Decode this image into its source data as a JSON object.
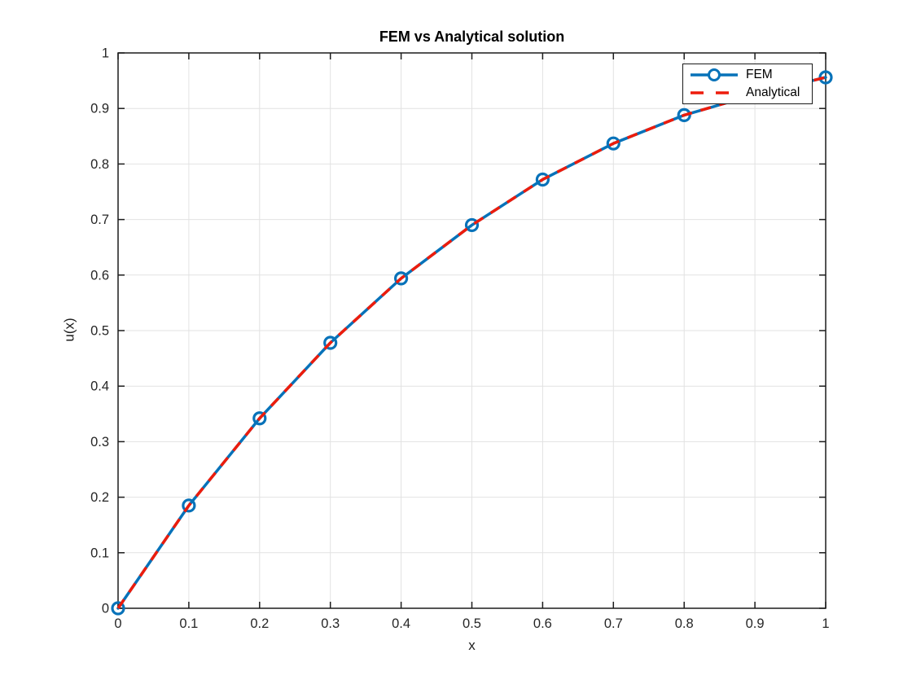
{
  "figure": {
    "title": "FEM vs Analytical solution",
    "xlabel": "x",
    "ylabel": "u(x)"
  },
  "legend": {
    "position": "top-right",
    "items": [
      {
        "label": "FEM"
      },
      {
        "label": "Analytical"
      }
    ]
  },
  "chart_data": {
    "type": "line",
    "title": "FEM vs Analytical solution",
    "xlabel": "x",
    "ylabel": "u(x)",
    "xlim": [
      0,
      1
    ],
    "ylim": [
      0,
      1
    ],
    "grid": true,
    "legend_position": "top-right",
    "x_tick_labels": [
      "0",
      "0.1",
      "0.2",
      "0.3",
      "0.4",
      "0.5",
      "0.6",
      "0.7",
      "0.8",
      "0.9",
      "1"
    ],
    "y_tick_labels": [
      "0",
      "0.1",
      "0.2",
      "0.3",
      "0.4",
      "0.5",
      "0.6",
      "0.7",
      "0.8",
      "0.9",
      "1"
    ],
    "x": [
      0,
      0.1,
      0.2,
      0.3,
      0.4,
      0.5,
      0.6,
      0.7,
      0.8,
      0.9,
      1.0
    ],
    "series": [
      {
        "name": "FEM",
        "line_style": "solid",
        "marker": "circle",
        "color": "#0772B9",
        "values": [
          0,
          0.185,
          0.342,
          0.478,
          0.594,
          0.69,
          0.772,
          0.837,
          0.888,
          0.925,
          0.956
        ]
      },
      {
        "name": "Analytical",
        "line_style": "dashed",
        "marker": "none",
        "color": "#ED1C0C",
        "values": [
          0,
          0.185,
          0.342,
          0.478,
          0.594,
          0.69,
          0.772,
          0.837,
          0.888,
          0.925,
          0.956
        ]
      }
    ]
  },
  "colors": {
    "fem_blue": "#0772B9",
    "analytical_red": "#ED1C0C",
    "grid_line": "#E2E2E2",
    "axis_frame": "#1C1C1C",
    "tick_text": "#262626",
    "background": "#FFFFFF"
  }
}
